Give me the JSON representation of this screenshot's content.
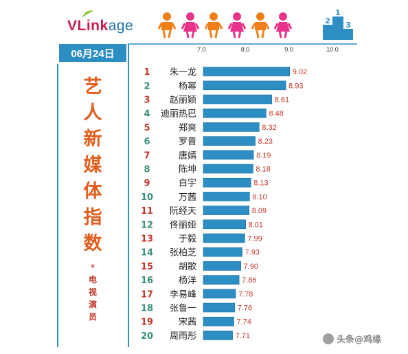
{
  "brand": {
    "name_red": "VLink",
    "name_blue": "age"
  },
  "date_label": "06月24日",
  "side_title": {
    "main": "艺人新媒体指数",
    "star": "*",
    "sub": "电视演员"
  },
  "watermark": "头条@鸡缘",
  "colors": {
    "bar": "#2d8ec4",
    "rank_odd": "#c0392b",
    "rank_even": "#3a8f7a",
    "value_text": "#c0392b",
    "person_orange": "#f07f1a",
    "person_pink": "#e7348a",
    "podium": "#2d8ec4"
  },
  "decor_icons": [
    "person-icon",
    "person-icon",
    "person-icon",
    "person-icon",
    "person-icon",
    "person-icon",
    "podium-icon"
  ],
  "chart_data": {
    "type": "bar",
    "orientation": "horizontal",
    "xlim": [
      6.0,
      10.0
    ],
    "xticks": [
      "7.0",
      "8.0",
      "9.0",
      "10.0"
    ],
    "tick_values": [
      7.0,
      8.0,
      9.0,
      10.0
    ],
    "ranks": [
      1,
      2,
      3,
      4,
      5,
      6,
      7,
      8,
      9,
      10,
      11,
      12,
      13,
      14,
      15,
      16,
      17,
      18,
      19,
      20
    ],
    "categories": [
      "朱一龙",
      "杨幂",
      "赵丽颖",
      "迪丽热巴",
      "郑爽",
      "罗晋",
      "唐嫣",
      "陈坤",
      "白宇",
      "万茜",
      "阮经天",
      "佟丽娅",
      "于毅",
      "张柏芝",
      "胡歌",
      "杨洋",
      "李易峰",
      "张鲁一",
      "宋茜",
      "周雨彤"
    ],
    "values": [
      9.02,
      8.93,
      8.61,
      8.48,
      8.32,
      8.23,
      8.19,
      8.18,
      8.13,
      8.1,
      8.09,
      8.01,
      7.99,
      7.93,
      7.9,
      7.86,
      7.78,
      7.76,
      7.74,
      7.71
    ],
    "value_labels": [
      "9.02",
      "8.93",
      "8.61",
      "8.48",
      "8.32",
      "8.23",
      "8.19",
      "8.18",
      "8.13",
      "8.10",
      "8.09",
      "8.01",
      "7.99",
      "7.93",
      "7.90",
      "7.86",
      "7.78",
      "7.76",
      "7.74",
      "7.71"
    ]
  }
}
